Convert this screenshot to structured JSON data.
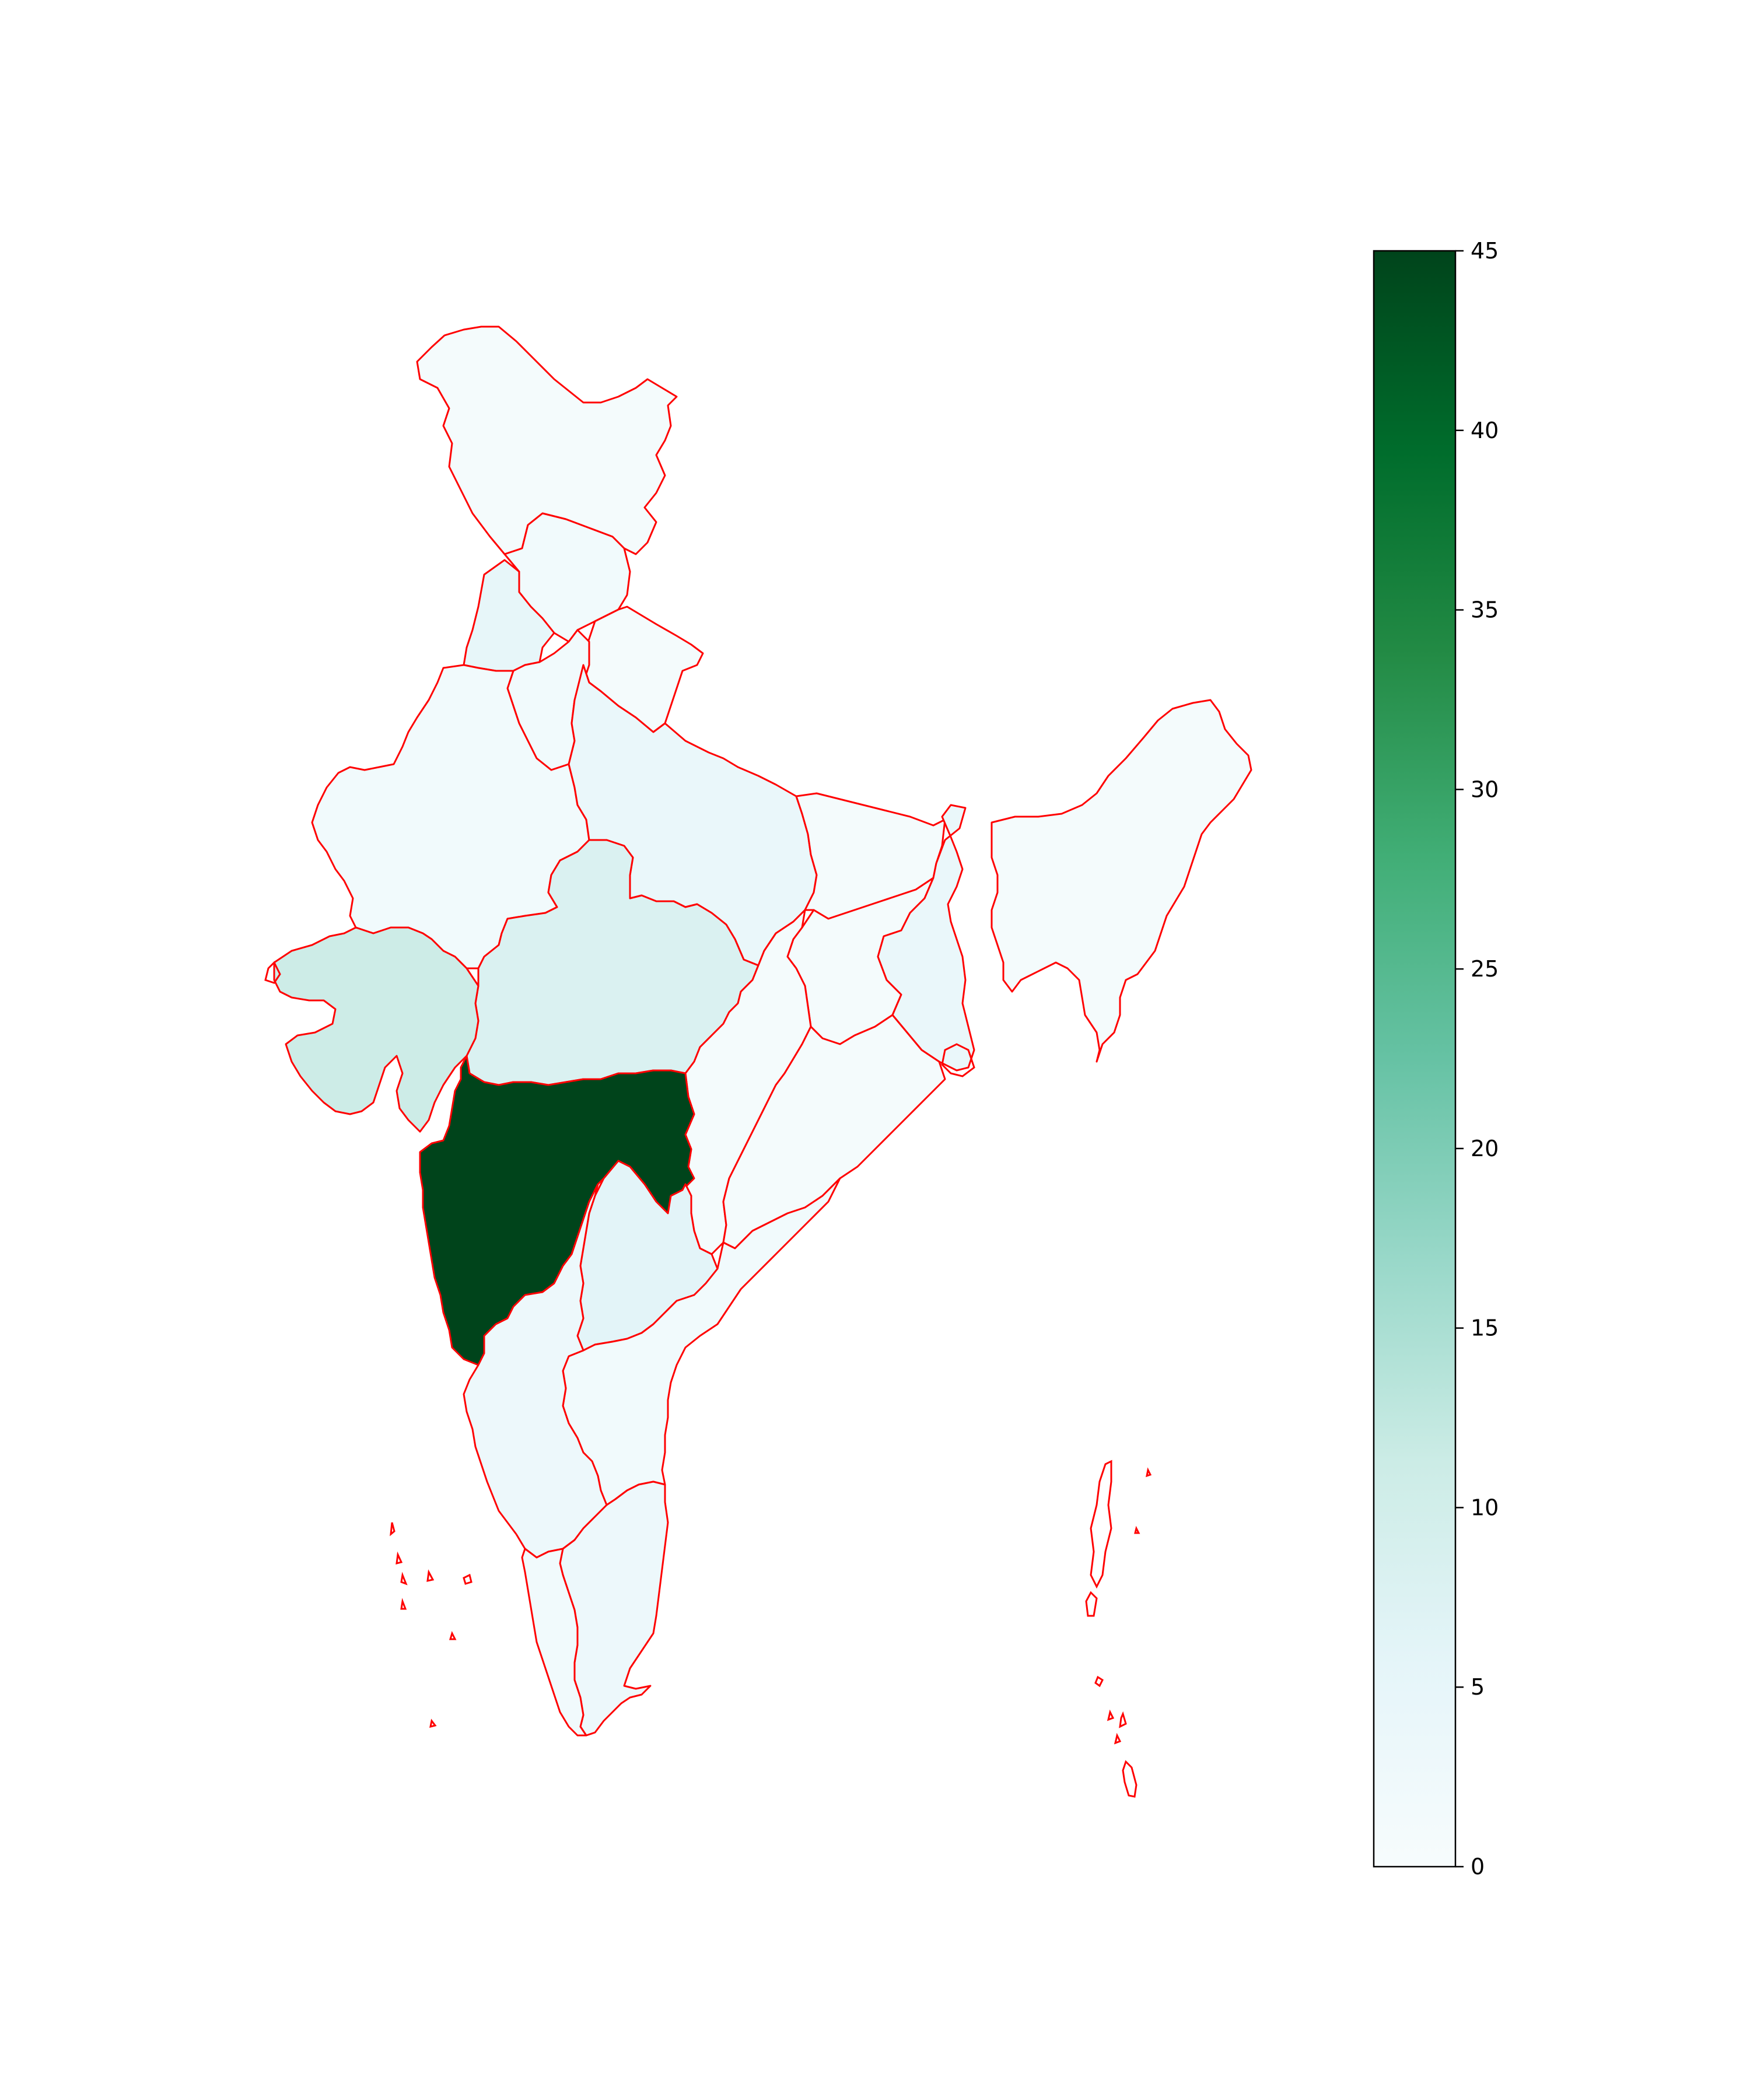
{
  "map": {
    "type": "choropleth",
    "boundary_color": "#ff0000",
    "colormap": "BuGn",
    "regions": [
      {
        "id": "north-kashmir",
        "value": 1
      },
      {
        "id": "punjab",
        "value": 5
      },
      {
        "id": "himachal",
        "value": 2
      },
      {
        "id": "uttarakhand",
        "value": 1
      },
      {
        "id": "haryana-delhi",
        "value": 2
      },
      {
        "id": "rajasthan",
        "value": 2
      },
      {
        "id": "uttar-pradesh",
        "value": 4
      },
      {
        "id": "bihar",
        "value": 1
      },
      {
        "id": "northeast",
        "value": 1
      },
      {
        "id": "madhya-pradesh",
        "value": 8
      },
      {
        "id": "gujarat",
        "value": 11
      },
      {
        "id": "chhattisgarh",
        "value": 1
      },
      {
        "id": "jharkhand",
        "value": 1
      },
      {
        "id": "west-bengal",
        "value": 4
      },
      {
        "id": "odisha",
        "value": 1
      },
      {
        "id": "maharashtra",
        "value": 45
      },
      {
        "id": "telangana",
        "value": 6
      },
      {
        "id": "andhra-pradesh",
        "value": 2
      },
      {
        "id": "karnataka",
        "value": 3
      },
      {
        "id": "tamil-nadu",
        "value": 3
      },
      {
        "id": "kerala",
        "value": 2
      }
    ]
  },
  "colorbar": {
    "min": 0,
    "max": 45,
    "ticks": [
      "0",
      "5",
      "10",
      "15",
      "20",
      "25",
      "30",
      "35",
      "40",
      "45"
    ],
    "stops": [
      "#f7fcfd",
      "#e5f5f9",
      "#ccece6",
      "#99d8c9",
      "#66c2a4",
      "#41ae76",
      "#238b45",
      "#006d2c",
      "#00441b"
    ]
  }
}
